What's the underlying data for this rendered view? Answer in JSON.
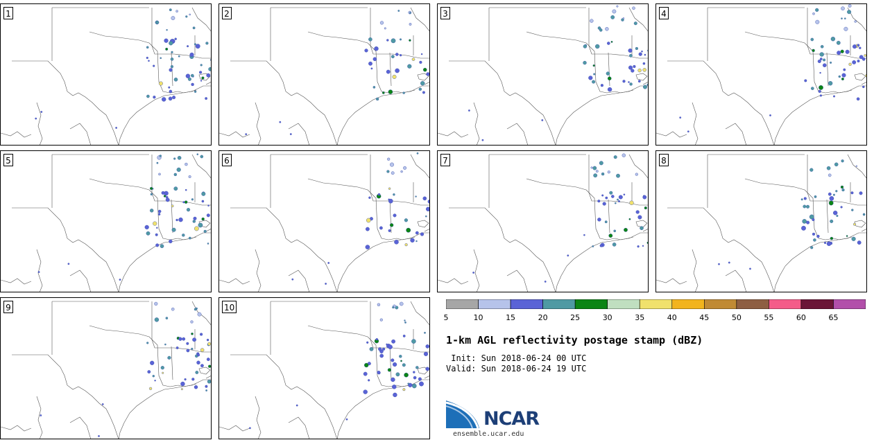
{
  "product": {
    "title": "1-km AGL reflectivity postage stamp (dBZ)",
    "init_line": " Init: Sun 2018-06-24 00 UTC",
    "valid_line": "Valid: Sun 2018-06-24 19 UTC"
  },
  "panels": [
    {
      "label": "1"
    },
    {
      "label": "2"
    },
    {
      "label": "3"
    },
    {
      "label": "4"
    },
    {
      "label": "5"
    },
    {
      "label": "6"
    },
    {
      "label": "7"
    },
    {
      "label": "8"
    },
    {
      "label": "9"
    },
    {
      "label": "10"
    }
  ],
  "colorbar": {
    "min": 5,
    "max": 70,
    "step": 5,
    "tick_labels": [
      "5",
      "10",
      "15",
      "20",
      "25",
      "30",
      "35",
      "40",
      "45",
      "50",
      "55",
      "60",
      "65"
    ],
    "colors": [
      "#a6a6a6",
      "#b6c3ea",
      "#5a63d6",
      "#4f9aa3",
      "#0b8514",
      "#c0dfc0",
      "#f0e16c",
      "#f2b41d",
      "#c08a34",
      "#8e5e42",
      "#f45c89",
      "#6b1537",
      "#b24faa"
    ]
  },
  "logo": {
    "text": "NCAR",
    "site": "ensemble.ucar.edu",
    "colors": {
      "blue": "#1d6fb8",
      "navy": "#1d3f77"
    }
  },
  "map": {
    "line_color": "#555555",
    "echo_outline": "#3b4fa8"
  }
}
